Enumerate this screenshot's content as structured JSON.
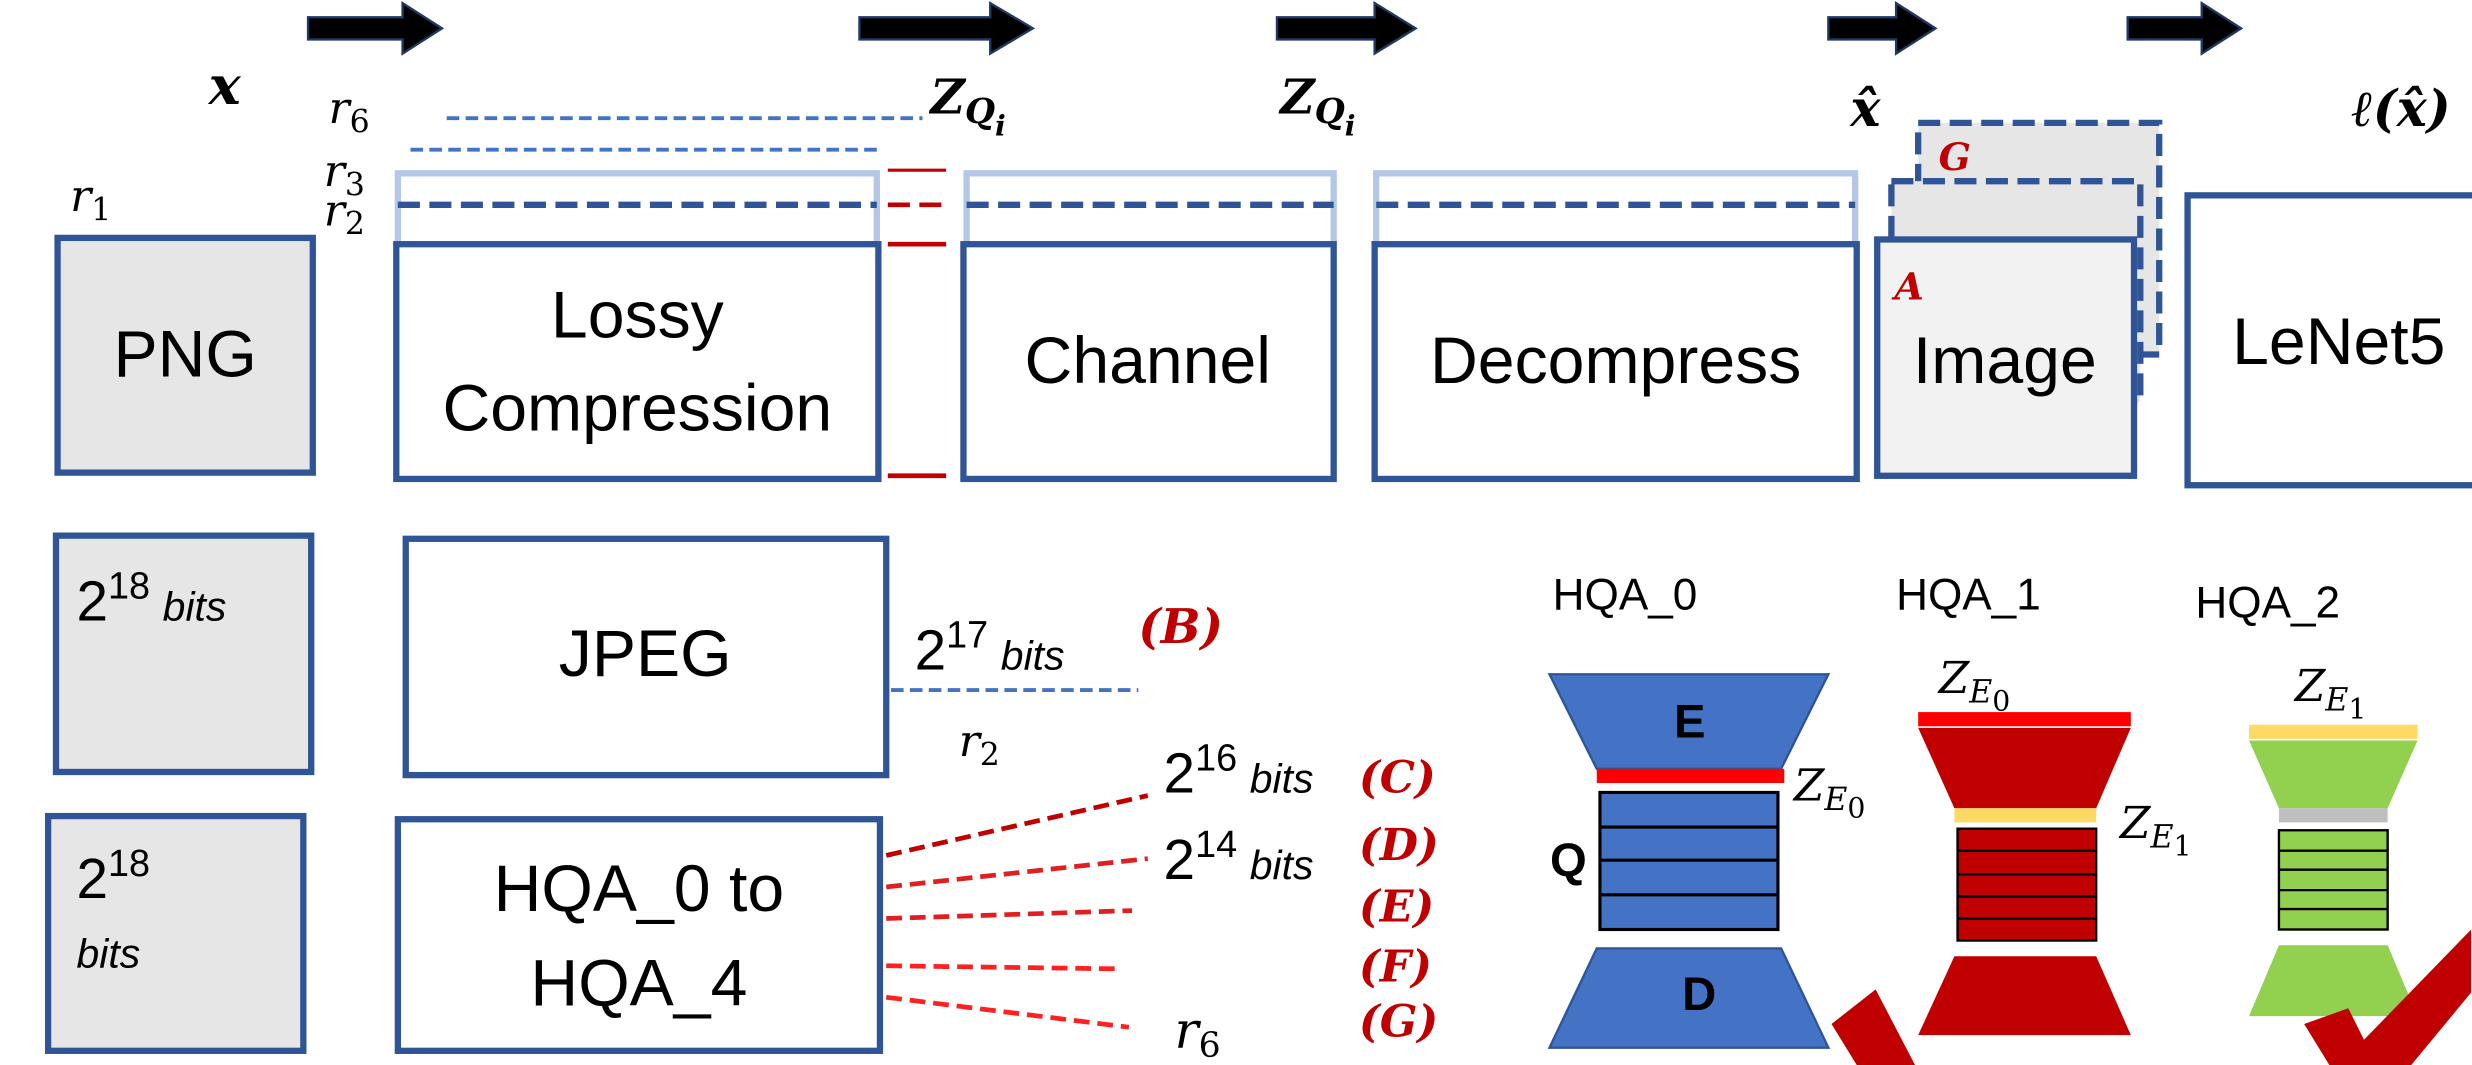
{
  "top_labels": {
    "x": "x",
    "z_q_1": {
      "main": "Z",
      "sub": "Q",
      "subsub": "i"
    },
    "z_q_2": {
      "main": "Z",
      "sub": "Q",
      "subsub": "i"
    },
    "x_hat": "x̂",
    "loss": "ℓ(x̂)"
  },
  "rates": {
    "r6": {
      "main": "r",
      "sub": "6"
    },
    "r3": {
      "main": "r",
      "sub": "3"
    },
    "r2": {
      "main": "r",
      "sub": "2"
    },
    "r1": {
      "main": "r",
      "sub": "1"
    }
  },
  "pipeline": {
    "png": "PNG",
    "lossy": [
      "Lossy",
      "Compression"
    ],
    "channel": "Channel",
    "decompress": "Decompress",
    "image": "Image",
    "classifier": "LeNet5"
  },
  "stack_labels": {
    "a": "A",
    "g": "G"
  },
  "jpeg_row": {
    "input": {
      "base": "2",
      "exp": "18",
      "unit": "bits"
    },
    "box": "JPEG",
    "output": {
      "base": "2",
      "exp": "17",
      "unit": "bits",
      "tag": "(B)"
    },
    "rate": {
      "main": "r",
      "sub": "2"
    }
  },
  "hqa_row": {
    "input": {
      "base": "2",
      "exp": "18",
      "unit": "bits"
    },
    "box": [
      "HQA_0 to",
      "HQA_4"
    ],
    "outputs": [
      {
        "base": "2",
        "exp": "16",
        "unit": "bits",
        "tag": "(C)"
      },
      {
        "base": "2",
        "exp": "14",
        "unit": "bits",
        "tag": "(D)"
      },
      {
        "tag": "(E)"
      },
      {
        "tag": "(F)"
      },
      {
        "main": "r",
        "sub": "6",
        "tag": "(G)"
      }
    ]
  },
  "hqa_models": [
    {
      "name": "HQA_0",
      "encoder": "E",
      "quantizer": "Q",
      "decoder": "D",
      "code_out": {
        "main": "Z",
        "sub": "E",
        "subsub": "0"
      }
    },
    {
      "name": "HQA_1",
      "code_in": {
        "main": "Z",
        "sub": "E",
        "subsub": "0"
      },
      "code_out": {
        "main": "Z",
        "sub": "E",
        "subsub": "1"
      }
    },
    {
      "name": "HQA_2",
      "code_in": {
        "main": "Z",
        "sub": "E",
        "subsub": "1"
      }
    }
  ]
}
